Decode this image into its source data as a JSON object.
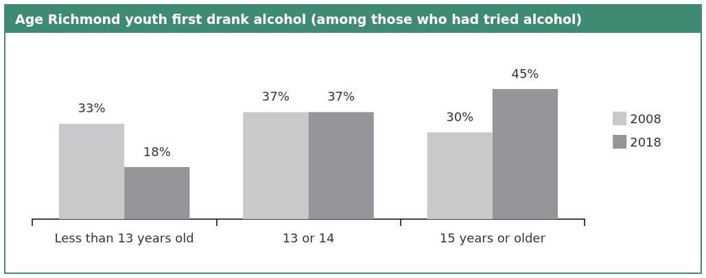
{
  "chart_data": {
    "type": "bar",
    "title": "Age Richmond youth first drank alcohol (among those who had tried alcohol)",
    "categories": [
      "Less than 13 years old",
      "13 or 14",
      "15 years or older"
    ],
    "series": [
      {
        "name": "2008",
        "color": "#c8c9cb",
        "values": [
          33,
          37,
          30
        ],
        "value_labels": [
          "33%",
          "37%",
          "30%"
        ]
      },
      {
        "name": "2018",
        "color": "#939598",
        "values": [
          18,
          37,
          45
        ],
        "value_labels": [
          "18%",
          "37%",
          "45%"
        ]
      }
    ],
    "legend": "right",
    "grid": false
  }
}
